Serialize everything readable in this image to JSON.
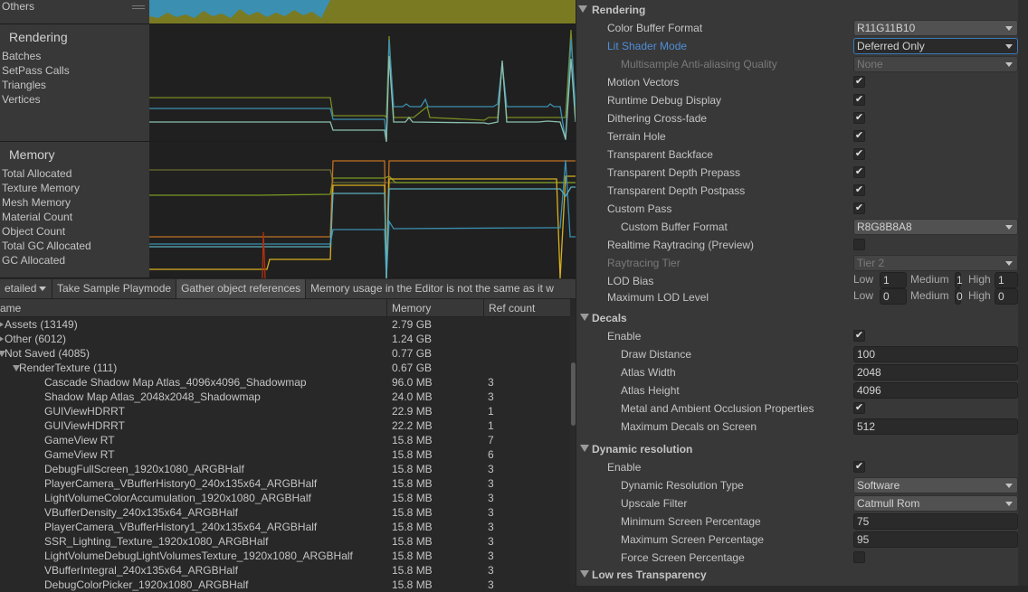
{
  "profiler": {
    "others_label": "Others",
    "rendering": {
      "title": "Rendering",
      "items": [
        "Batches",
        "SetPass Calls",
        "Triangles",
        "Vertices"
      ]
    },
    "memory": {
      "title": "Memory",
      "items": [
        "Total Allocated",
        "Texture Memory",
        "Mesh Memory",
        "Material Count",
        "Object Count",
        "Total GC Allocated",
        "GC Allocated"
      ]
    },
    "series_colors": {
      "olive": "#7a7a22",
      "blue": "#3b8fb0",
      "teal": "#7fb8b0",
      "orange": "#c07020",
      "yellow": "#d8b020",
      "green": "#7a9a20",
      "red": "#b03010"
    }
  },
  "toolbar": {
    "mode_dropdown": "etailed",
    "take_sample": "Take Sample Playmode",
    "gather_refs": "Gather object references",
    "notice": "Memory usage in the Editor is not the same as it w"
  },
  "table": {
    "columns": [
      "ame",
      "Memory",
      "Ref count"
    ],
    "rows": [
      {
        "name": "Assets (13149)",
        "memory": "2.79 GB",
        "ref": "",
        "level": 0,
        "expander": "collapsed"
      },
      {
        "name": "Other (6012)",
        "memory": "1.24 GB",
        "ref": "",
        "level": 0,
        "expander": "collapsed"
      },
      {
        "name": "Not Saved (4085)",
        "memory": "0.77 GB",
        "ref": "",
        "level": 0,
        "expander": "expanded"
      },
      {
        "name": "RenderTexture (111)",
        "memory": "0.67 GB",
        "ref": "",
        "level": 1,
        "expander": "expanded"
      },
      {
        "name": "Cascade Shadow Map Atlas_4096x4096_Shadowmap",
        "memory": "96.0 MB",
        "ref": "3",
        "level": 2
      },
      {
        "name": "Shadow Map Atlas_2048x2048_Shadowmap",
        "memory": "24.0 MB",
        "ref": "3",
        "level": 2
      },
      {
        "name": "GUIViewHDRRT",
        "memory": "22.9 MB",
        "ref": "1",
        "level": 2
      },
      {
        "name": "GUIViewHDRRT",
        "memory": "22.2 MB",
        "ref": "1",
        "level": 2
      },
      {
        "name": "GameView RT",
        "memory": "15.8 MB",
        "ref": "7",
        "level": 2
      },
      {
        "name": "GameView RT",
        "memory": "15.8 MB",
        "ref": "6",
        "level": 2
      },
      {
        "name": "DebugFullScreen_1920x1080_ARGBHalf",
        "memory": "15.8 MB",
        "ref": "3",
        "level": 2
      },
      {
        "name": "PlayerCamera_VBufferHistory0_240x135x64_ARGBHalf",
        "memory": "15.8 MB",
        "ref": "3",
        "level": 2
      },
      {
        "name": "LightVolumeColorAccumulation_1920x1080_ARGBHalf",
        "memory": "15.8 MB",
        "ref": "3",
        "level": 2
      },
      {
        "name": "VBufferDensity_240x135x64_ARGBHalf",
        "memory": "15.8 MB",
        "ref": "3",
        "level": 2
      },
      {
        "name": "PlayerCamera_VBufferHistory1_240x135x64_ARGBHalf",
        "memory": "15.8 MB",
        "ref": "3",
        "level": 2
      },
      {
        "name": "SSR_Lighting_Texture_1920x1080_ARGBHalf",
        "memory": "15.8 MB",
        "ref": "3",
        "level": 2
      },
      {
        "name": "LightVolumeDebugLightVolumesTexture_1920x1080_ARGBHalf",
        "memory": "15.8 MB",
        "ref": "3",
        "level": 2
      },
      {
        "name": "VBufferIntegral_240x135x64_ARGBHalf",
        "memory": "15.8 MB",
        "ref": "3",
        "level": 2
      },
      {
        "name": "DebugColorPicker_1920x1080_ARGBHalf",
        "memory": "15.8 MB",
        "ref": "3",
        "level": 2
      }
    ]
  },
  "inspector": {
    "rows": [
      {
        "type": "header",
        "label": "Rendering"
      },
      {
        "type": "dropdown",
        "label": "Color Buffer Format",
        "value": "R11G11B10",
        "indent": 1
      },
      {
        "type": "dropdown",
        "label": "Lit Shader Mode",
        "value": "Deferred Only",
        "indent": 1,
        "state": "focused"
      },
      {
        "type": "dropdown",
        "label": "Multisample Anti-aliasing Quality",
        "value": "None",
        "indent": 2,
        "state": "disabled"
      },
      {
        "type": "checkbox",
        "label": "Motion Vectors",
        "checked": true,
        "indent": 1
      },
      {
        "type": "checkbox",
        "label": "Runtime Debug Display",
        "checked": true,
        "indent": 1
      },
      {
        "type": "checkbox",
        "label": "Dithering Cross-fade",
        "checked": true,
        "indent": 1
      },
      {
        "type": "checkbox",
        "label": "Terrain Hole",
        "checked": true,
        "indent": 1
      },
      {
        "type": "checkbox",
        "label": "Transparent Backface",
        "checked": true,
        "indent": 1
      },
      {
        "type": "checkbox",
        "label": "Transparent Depth Prepass",
        "checked": true,
        "indent": 1
      },
      {
        "type": "checkbox",
        "label": "Transparent Depth Postpass",
        "checked": true,
        "indent": 1
      },
      {
        "type": "checkbox",
        "label": "Custom Pass",
        "checked": true,
        "indent": 1
      },
      {
        "type": "dropdown",
        "label": "Custom Buffer Format",
        "value": "R8G8B8A8",
        "indent": 2
      },
      {
        "type": "checkbox",
        "label": "Realtime Raytracing (Preview)",
        "checked": false,
        "indent": 1
      },
      {
        "type": "dropdown",
        "label": "Raytracing Tier",
        "value": "Tier 2",
        "indent": 1,
        "state": "disabled"
      },
      {
        "type": "lod",
        "label": "LOD Bias",
        "low_label": "Low",
        "low": "1",
        "medium_label": "Medium",
        "medium": "1",
        "high_label": "High",
        "high": "1",
        "indent": 1
      },
      {
        "type": "lod",
        "label": "Maximum LOD Level",
        "low_label": "Low",
        "low": "0",
        "medium_label": "Medium",
        "medium": "0",
        "high_label": "High",
        "high": "0",
        "indent": 1
      },
      {
        "type": "header",
        "label": "Decals"
      },
      {
        "type": "checkbox",
        "label": "Enable",
        "checked": true,
        "indent": 1
      },
      {
        "type": "text",
        "label": "Draw Distance",
        "value": "100",
        "indent": 2
      },
      {
        "type": "text",
        "label": "Atlas Width",
        "value": "2048",
        "indent": 2
      },
      {
        "type": "text",
        "label": "Atlas Height",
        "value": "4096",
        "indent": 2
      },
      {
        "type": "checkbox",
        "label": "Metal and Ambient Occlusion Properties",
        "checked": true,
        "indent": 2
      },
      {
        "type": "text",
        "label": "Maximum Decals on Screen",
        "value": "512",
        "indent": 2
      },
      {
        "type": "header",
        "label": "Dynamic resolution"
      },
      {
        "type": "checkbox",
        "label": "Enable",
        "checked": true,
        "indent": 1
      },
      {
        "type": "dropdown",
        "label": "Dynamic Resolution Type",
        "value": "Software",
        "indent": 2
      },
      {
        "type": "dropdown",
        "label": "Upscale Filter",
        "value": "Catmull Rom",
        "indent": 2
      },
      {
        "type": "text",
        "label": "Minimum Screen Percentage",
        "value": "75",
        "indent": 2
      },
      {
        "type": "text",
        "label": "Maximum Screen Percentage",
        "value": "95",
        "indent": 2
      },
      {
        "type": "checkbox",
        "label": "Force Screen Percentage",
        "checked": false,
        "indent": 2
      },
      {
        "type": "header",
        "label": "Low res Transparency"
      }
    ]
  }
}
